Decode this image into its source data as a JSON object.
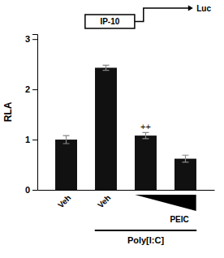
{
  "chart_data": {
    "type": "bar",
    "categories": [
      "Veh",
      "Veh",
      null,
      null
    ],
    "values": [
      1.0,
      2.43,
      1.08,
      0.62
    ],
    "errors": [
      0.08,
      0.05,
      0.06,
      0.07
    ],
    "color": "#111111",
    "ylabel": "RLA",
    "ylim": [
      0,
      3.1
    ],
    "yticks": [
      0,
      1,
      2,
      3
    ],
    "annotations": [
      {
        "text": "++",
        "x": 2,
        "y": 1.2
      },
      {
        "text": "PEIC"
      },
      {
        "text": "Poly[I:C]"
      },
      {
        "text": "IP-10"
      },
      {
        "text": "Luc"
      }
    ]
  }
}
